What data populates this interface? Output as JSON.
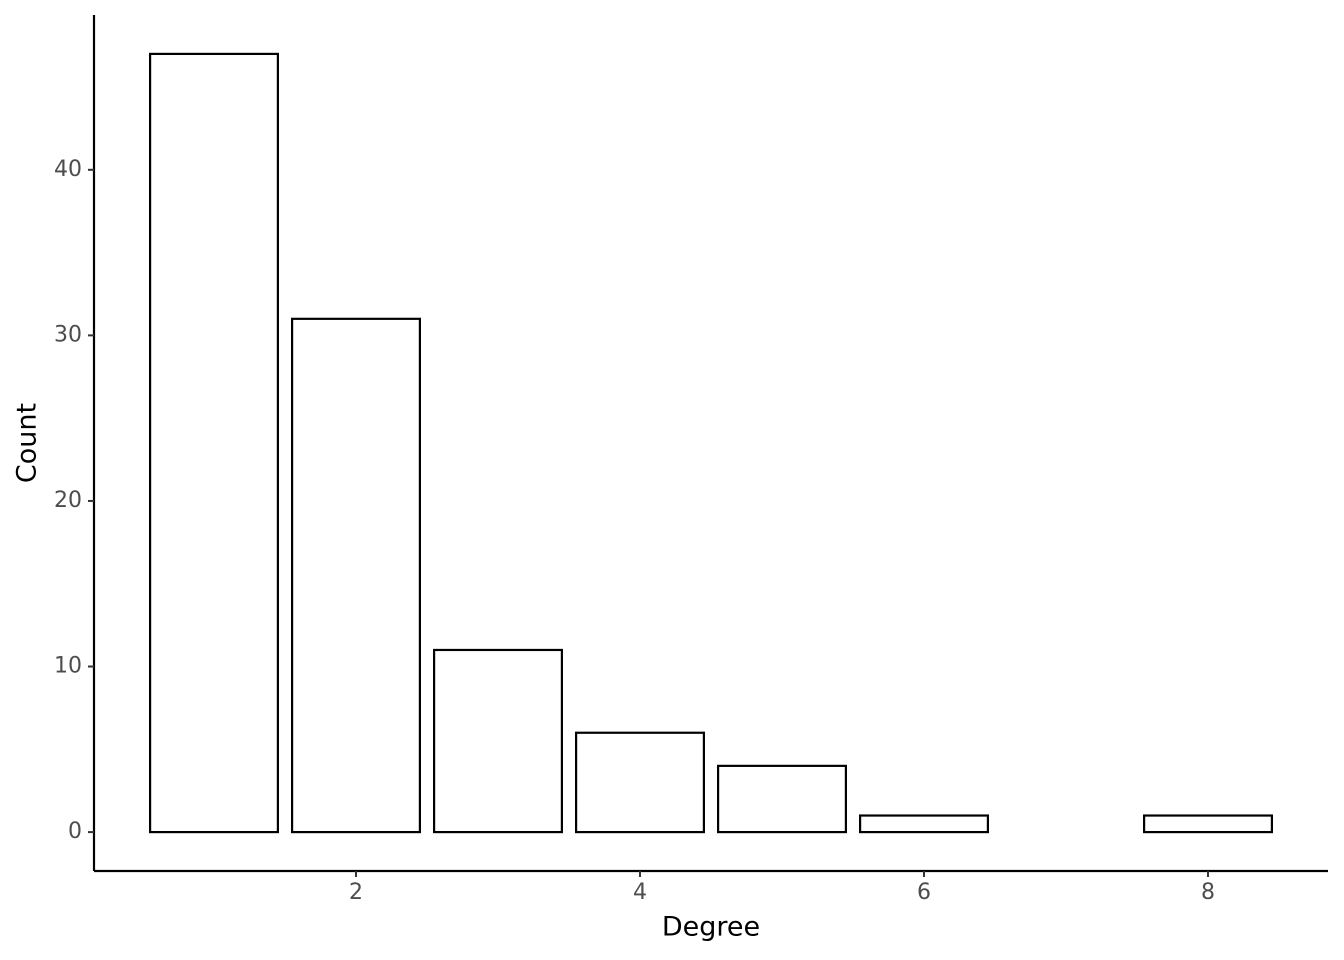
{
  "chart_data": {
    "type": "bar",
    "x_label": "Degree",
    "y_label": "Count",
    "x": [
      1,
      2,
      3,
      4,
      5,
      6,
      8
    ],
    "values": [
      47,
      31,
      11,
      6,
      4,
      1,
      1
    ],
    "color": "#ffffff",
    "edgecolor": "#000000",
    "xlim": [
      0.155,
      8.845
    ],
    "xticks": [
      2,
      4,
      6,
      8
    ],
    "ylim": [
      -2.35,
      49.35
    ],
    "yticks": [
      0,
      10,
      20,
      30,
      40
    ],
    "grid": false
  }
}
